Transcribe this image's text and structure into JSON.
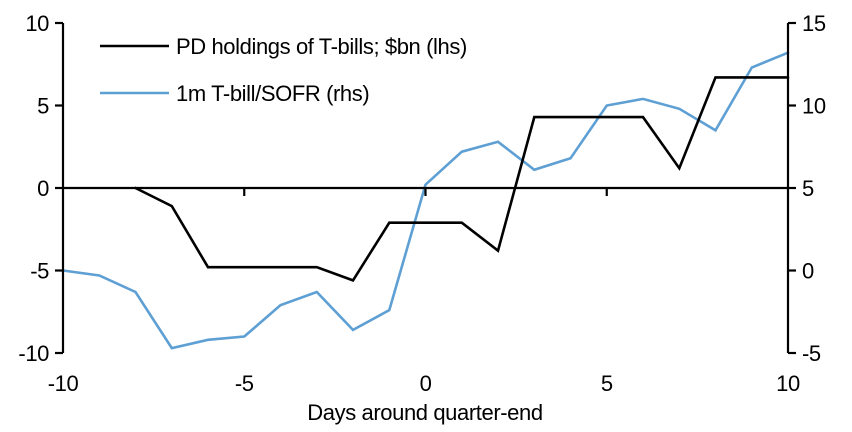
{
  "chart_data": {
    "type": "line",
    "title": "",
    "xlabel": "Days around quarter-end",
    "grid": false,
    "legend_position": "top-left",
    "background": "#ffffff",
    "text_color": "#000000",
    "axes": {
      "left": {
        "range": [
          -10,
          10
        ],
        "ticks": [
          10,
          5,
          0,
          -5,
          -10
        ]
      },
      "right": {
        "range": [
          -5,
          15
        ],
        "ticks": [
          15,
          10,
          5,
          0,
          -5
        ]
      },
      "x": {
        "range": [
          -10,
          10
        ],
        "ticks": [
          -10,
          -5,
          0,
          5,
          10
        ],
        "tick_marks": [
          -5,
          0,
          5
        ]
      }
    },
    "series": [
      {
        "name": "PD holdings of T-bills; $bn (lhs)",
        "axis": "left",
        "color": "#000000",
        "x": [
          -8,
          -7,
          -6,
          -5,
          -4,
          -3,
          -2,
          -1,
          0,
          1,
          2,
          3,
          4,
          5,
          6,
          7,
          8,
          9,
          10
        ],
        "values": [
          0.0,
          -1.1,
          -4.8,
          -4.8,
          -4.8,
          -4.8,
          -5.6,
          -2.1,
          -2.1,
          -2.1,
          -3.8,
          4.3,
          4.3,
          4.3,
          4.3,
          1.2,
          6.7,
          6.7,
          6.7
        ]
      },
      {
        "name": "1m T-bill/SOFR (rhs)",
        "axis": "right",
        "color": "#5E9FD4",
        "x": [
          -10,
          -9,
          -8,
          -7,
          -6,
          -5,
          -4,
          -3,
          -2,
          -1,
          0,
          1,
          2,
          3,
          4,
          5,
          6,
          7,
          8,
          9,
          10
        ],
        "values": [
          0.0,
          -0.3,
          -1.3,
          -4.7,
          -4.2,
          -4.0,
          -2.1,
          -1.3,
          -3.6,
          -2.4,
          5.2,
          7.2,
          7.8,
          6.1,
          6.8,
          10.0,
          10.4,
          9.8,
          8.5,
          12.3,
          13.2
        ]
      }
    ]
  }
}
